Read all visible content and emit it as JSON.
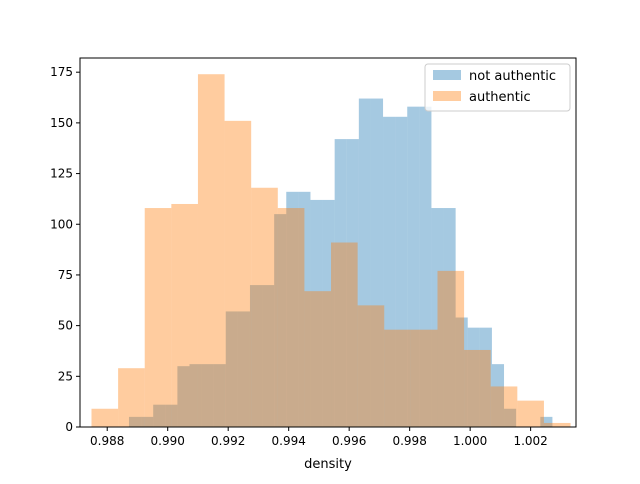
{
  "chart_data": {
    "type": "bar",
    "title": "",
    "xlabel": "density",
    "ylabel": "",
    "xlim": [
      0.9871,
      1.0035
    ],
    "ylim": [
      0,
      182
    ],
    "xticks": [
      0.988,
      0.99,
      0.992,
      0.994,
      0.996,
      0.998,
      1.0,
      1.002
    ],
    "xtick_labels": [
      "0.988",
      "0.990",
      "0.992",
      "0.994",
      "0.996",
      "0.998",
      "1.000",
      "1.002"
    ],
    "yticks": [
      0,
      25,
      50,
      75,
      100,
      125,
      150,
      175
    ],
    "ytick_labels": [
      "0",
      "25",
      "50",
      "75",
      "100",
      "125",
      "150",
      "175"
    ],
    "legend_position": "top-right",
    "grid": false,
    "series": [
      {
        "name": "not authentic",
        "color": "#1f77b4",
        "alpha": 0.4,
        "bin_edges": [
          0.98872,
          0.98912,
          0.98952,
          0.98992,
          0.99032,
          0.99072,
          0.99112,
          0.99152,
          0.99192,
          0.99232,
          0.99272,
          0.99312,
          0.99352,
          0.99392,
          0.99432,
          0.99472,
          0.99512,
          0.99552,
          0.99592,
          0.99632,
          0.99672,
          0.99712,
          0.99752,
          0.99792,
          0.99832,
          0.99872,
          0.99912,
          0.99952,
          0.99992,
          1.00032,
          1.00072,
          1.00112,
          1.00152,
          1.00192,
          1.00232,
          1.00272
        ],
        "values": [
          5,
          5,
          11,
          11,
          30,
          31,
          31,
          31,
          57,
          57,
          70,
          70,
          105,
          116,
          116,
          112,
          112,
          142,
          142,
          162,
          162,
          153,
          153,
          158,
          158,
          108,
          108,
          54,
          49,
          49,
          31,
          9,
          0,
          0,
          5
        ]
      },
      {
        "name": "authentic",
        "color": "#ff7f0e",
        "alpha": 0.4,
        "bin_edges": [
          0.98748,
          0.98836,
          0.98924,
          0.99012,
          0.991,
          0.99188,
          0.99276,
          0.99364,
          0.99452,
          0.9954,
          0.99628,
          0.99716,
          0.99804,
          0.99892,
          0.9998,
          1.00068,
          1.00156,
          1.00244,
          1.00332
        ],
        "values": [
          9,
          29,
          108,
          110,
          174,
          151,
          118,
          108,
          67,
          91,
          60,
          48,
          48,
          77,
          38,
          20,
          13,
          2
        ]
      }
    ]
  }
}
